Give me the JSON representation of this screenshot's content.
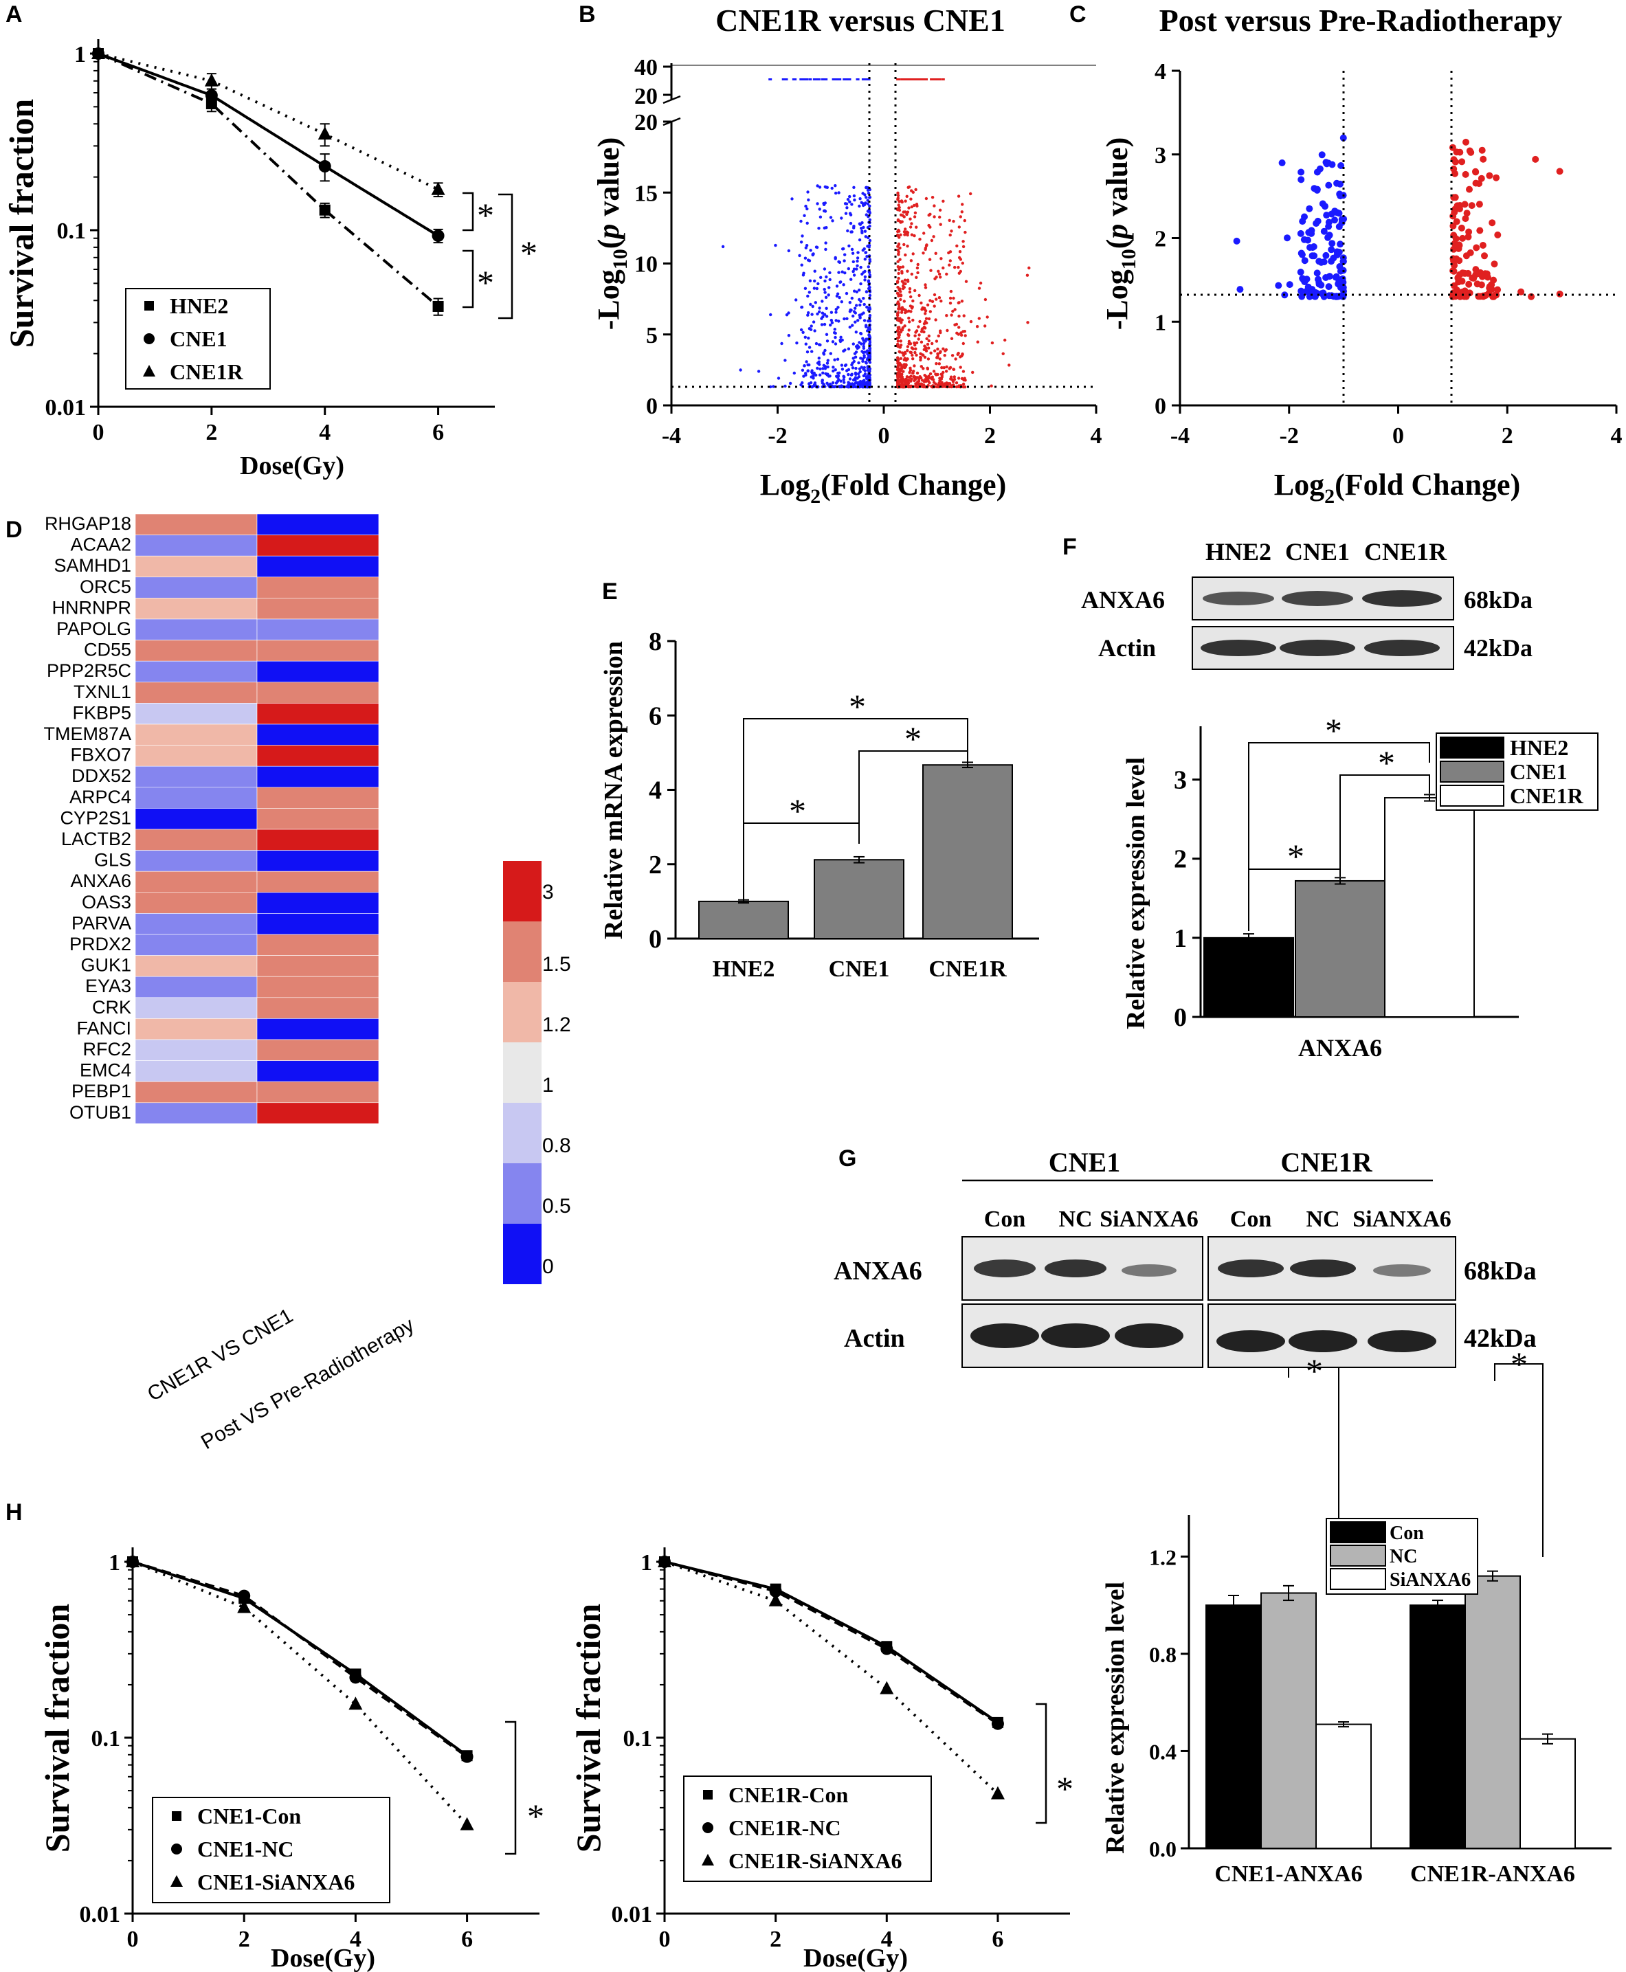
{
  "panel_labels": [
    "A",
    "B",
    "C",
    "D",
    "E",
    "F",
    "G",
    "H"
  ],
  "chart_data": [
    {
      "id": "A",
      "type": "line",
      "xlabel": "Dose(Gy)",
      "ylabel": "Survival fraction",
      "yscale": "log",
      "xlim": [
        0,
        7
      ],
      "ylim": [
        0.01,
        1
      ],
      "xticks": [
        "0",
        "2",
        "4",
        "6"
      ],
      "yticks": [
        "0.01",
        "0.1",
        "1"
      ],
      "x": [
        0,
        2,
        4,
        6
      ],
      "series": [
        {
          "name": "HNE2",
          "marker": "square",
          "style": "dashdot",
          "values": [
            1,
            0.52,
            0.13,
            0.037
          ],
          "err": [
            0.02,
            0.05,
            0.012,
            0.004
          ]
        },
        {
          "name": "CNE1",
          "marker": "circle",
          "style": "solid",
          "values": [
            1,
            0.58,
            0.23,
            0.093
          ],
          "err": [
            0.02,
            0.05,
            0.04,
            0.008
          ]
        },
        {
          "name": "CNE1R",
          "marker": "triangle",
          "style": "dotted",
          "values": [
            1,
            0.7,
            0.35,
            0.17
          ],
          "err": [
            0.02,
            0.07,
            0.05,
            0.015
          ]
        }
      ],
      "sig": [
        "*",
        "*",
        "*"
      ]
    },
    {
      "id": "B",
      "type": "scatter",
      "title": "CNE1R versus CNE1",
      "xlabel_main": "Log",
      "xlabel_sub": "2",
      "xlabel_rest": "(Fold Change)",
      "ylabel_main": "-Log",
      "ylabel_sub": "10",
      "ylabel_rest": "(p value)",
      "xlim": [
        -4,
        4
      ],
      "ylim": [
        0,
        20
      ],
      "xticks": [
        "-4",
        "-2",
        "0",
        "2",
        "4"
      ],
      "yticks": [
        "0",
        "5",
        "10",
        "15",
        "20"
      ],
      "ytop_ticks": [
        "20",
        "40"
      ],
      "fc_threshold": 0.26,
      "p_threshold": 1.3,
      "colors": {
        "down": "#1a1aff",
        "up": "#e02020"
      }
    },
    {
      "id": "C",
      "type": "scatter",
      "title": "Post versus Pre-Radiotherapy",
      "xlabel_main": "Log",
      "xlabel_sub": "2",
      "xlabel_rest": "(Fold Change)",
      "ylabel_main": "-Log",
      "ylabel_sub": "10",
      "ylabel_rest": "(p value)",
      "xlim": [
        -4,
        4
      ],
      "ylim": [
        0,
        4
      ],
      "xticks": [
        "-4",
        "-2",
        "0",
        "2",
        "4"
      ],
      "yticks": [
        "0",
        "1",
        "2",
        "3",
        "4"
      ],
      "fc_threshold": 1,
      "p_threshold": 1.3,
      "colors": {
        "down": "#1a1aff",
        "up": "#e02020"
      }
    },
    {
      "id": "D",
      "type": "heatmap",
      "columns": [
        "CNE1R VS CNE1",
        "Post VS Pre-Radiotherapy"
      ],
      "rows": [
        "RHGAP18",
        "ACAA2",
        "SAMHD1",
        "ORC5",
        "HNRNPR",
        "PAPOLG",
        "CD55",
        "PPP2R5C",
        "TXNL1",
        "FKBP5",
        "TMEM87A",
        "FBXO7",
        "DDX52",
        "ARPC4",
        "CYP2S1",
        "LACTB2",
        "GLS",
        "ANXA6",
        "OAS3",
        "PARVA",
        "PRDX2",
        "GUK1",
        "EYA3",
        "CRK",
        "FANCI",
        "RFC2",
        "EMC4",
        "PEBP1",
        "OTUB1"
      ],
      "values": [
        [
          1.5,
          0
        ],
        [
          0.5,
          3
        ],
        [
          1.2,
          0
        ],
        [
          0.5,
          1.5
        ],
        [
          1.2,
          1.5
        ],
        [
          0.5,
          0.5
        ],
        [
          1.5,
          1.5
        ],
        [
          0.5,
          0
        ],
        [
          1.5,
          1.5
        ],
        [
          0.8,
          3
        ],
        [
          1.2,
          0
        ],
        [
          1.2,
          3
        ],
        [
          0.5,
          0
        ],
        [
          0.5,
          1.5
        ],
        [
          0,
          1.5
        ],
        [
          1.5,
          3
        ],
        [
          0.5,
          0
        ],
        [
          1.5,
          1.5
        ],
        [
          1.5,
          0
        ],
        [
          0.5,
          0
        ],
        [
          0.5,
          1.5
        ],
        [
          1.2,
          1.5
        ],
        [
          0.5,
          1.5
        ],
        [
          0.8,
          1.5
        ],
        [
          1.2,
          0
        ],
        [
          0.8,
          1.5
        ],
        [
          0.8,
          0
        ],
        [
          1.5,
          1.5
        ],
        [
          0.5,
          3
        ]
      ],
      "colorbar": {
        "levels": [
          "3",
          "1.5",
          "1.2",
          "1",
          "0.8",
          "0.5",
          "0"
        ],
        "colors": [
          "#d61a1a",
          "#e08373",
          "#f0b8a8",
          "#e8e8e8",
          "#c8c8f2",
          "#8585ef",
          "#1010f5"
        ]
      }
    },
    {
      "id": "E",
      "type": "bar",
      "ylabel": "Relative mRNA expression",
      "categories": [
        "HNE2",
        "CNE1",
        "CNE1R"
      ],
      "values": [
        1.0,
        2.12,
        4.67
      ],
      "err": [
        0.04,
        0.08,
        0.07
      ],
      "ylim": [
        0,
        8
      ],
      "yticks": [
        "0",
        "2",
        "4",
        "6",
        "8"
      ],
      "sig": [
        "*",
        "*",
        "*"
      ]
    },
    {
      "id": "F",
      "type": "bar",
      "ylabel": "Relative expression level",
      "xlabel": "ANXA6",
      "categories": [
        "HNE2",
        "CNE1",
        "CNE1R"
      ],
      "values": [
        1.0,
        1.72,
        2.77
      ],
      "err": [
        0.05,
        0.04,
        0.04
      ],
      "colors": [
        "#000000",
        "#808080",
        "#ffffff"
      ],
      "ylim": [
        0,
        3.5
      ],
      "yticks": [
        "0",
        "1",
        "2",
        "3"
      ],
      "sig": [
        "*",
        "*",
        "*"
      ],
      "blot": {
        "lanes": [
          "HNE2",
          "CNE1",
          "CNE1R"
        ],
        "rows": [
          "ANXA6",
          "Actin"
        ],
        "sizes": [
          "68kDa",
          "42kDa"
        ]
      }
    },
    {
      "id": "G",
      "type": "blot",
      "groups": [
        "CNE1",
        "CNE1R"
      ],
      "lanes": [
        "Con",
        "NC",
        "SiANXA6",
        "Con",
        "NC",
        "SiANXA6"
      ],
      "rows": [
        "ANXA6",
        "Actin"
      ],
      "sizes": [
        "68kDa",
        "42kDa"
      ]
    },
    {
      "id": "H1",
      "type": "line",
      "xlabel": "Dose(Gy)",
      "ylabel": "Survival fraction",
      "yscale": "log",
      "xticks": [
        "0",
        "2",
        "4",
        "6"
      ],
      "yticks": [
        "0.01",
        "0.1",
        "1"
      ],
      "x": [
        0,
        2,
        4,
        6
      ],
      "series": [
        {
          "name": "CNE1-Con",
          "marker": "square",
          "style": "solid",
          "values": [
            1,
            0.62,
            0.23,
            0.079
          ]
        },
        {
          "name": "CNE1-NC",
          "marker": "circle",
          "style": "dashed",
          "values": [
            1,
            0.64,
            0.22,
            0.078
          ]
        },
        {
          "name": "CNE1-SiANXA6",
          "marker": "triangle",
          "style": "dotted",
          "values": [
            1,
            0.55,
            0.155,
            0.032
          ]
        }
      ],
      "sig": [
        "*"
      ]
    },
    {
      "id": "H2",
      "type": "line",
      "xlabel": "Dose(Gy)",
      "ylabel": "Survival fraction",
      "yscale": "log",
      "xticks": [
        "0",
        "2",
        "4",
        "6"
      ],
      "yticks": [
        "0.01",
        "0.1",
        "1"
      ],
      "x": [
        0,
        2,
        4,
        6
      ],
      "series": [
        {
          "name": "CNE1R-Con",
          "marker": "square",
          "style": "solid",
          "values": [
            1,
            0.7,
            0.33,
            0.122
          ]
        },
        {
          "name": "CNE1R-NC",
          "marker": "circle",
          "style": "dashed",
          "values": [
            1,
            0.68,
            0.32,
            0.12
          ]
        },
        {
          "name": "CNE1R-SiANXA6",
          "marker": "triangle",
          "style": "dotted",
          "values": [
            1,
            0.6,
            0.19,
            0.048
          ]
        }
      ],
      "sig": [
        "*"
      ]
    },
    {
      "id": "H3",
      "type": "bar",
      "ylabel": "Relative expression level",
      "categories": [
        "CNE1-ANXA6",
        "CNE1R-ANXA6"
      ],
      "series": [
        {
          "name": "Con",
          "color": "#000000",
          "values": [
            1.0,
            1.0
          ],
          "err": [
            0.04,
            0.02
          ]
        },
        {
          "name": "NC",
          "color": "#b4b4b4",
          "values": [
            1.05,
            1.12
          ],
          "err": [
            0.03,
            0.02
          ]
        },
        {
          "name": "SiANXA6",
          "color": "#ffffff",
          "values": [
            0.51,
            0.45
          ],
          "err": [
            0.01,
            0.02
          ]
        }
      ],
      "ylim": [
        0,
        1.3
      ],
      "yticks": [
        "0.0",
        "0.4",
        "0.8",
        "1.2"
      ],
      "sig": [
        "*",
        "*"
      ]
    }
  ]
}
